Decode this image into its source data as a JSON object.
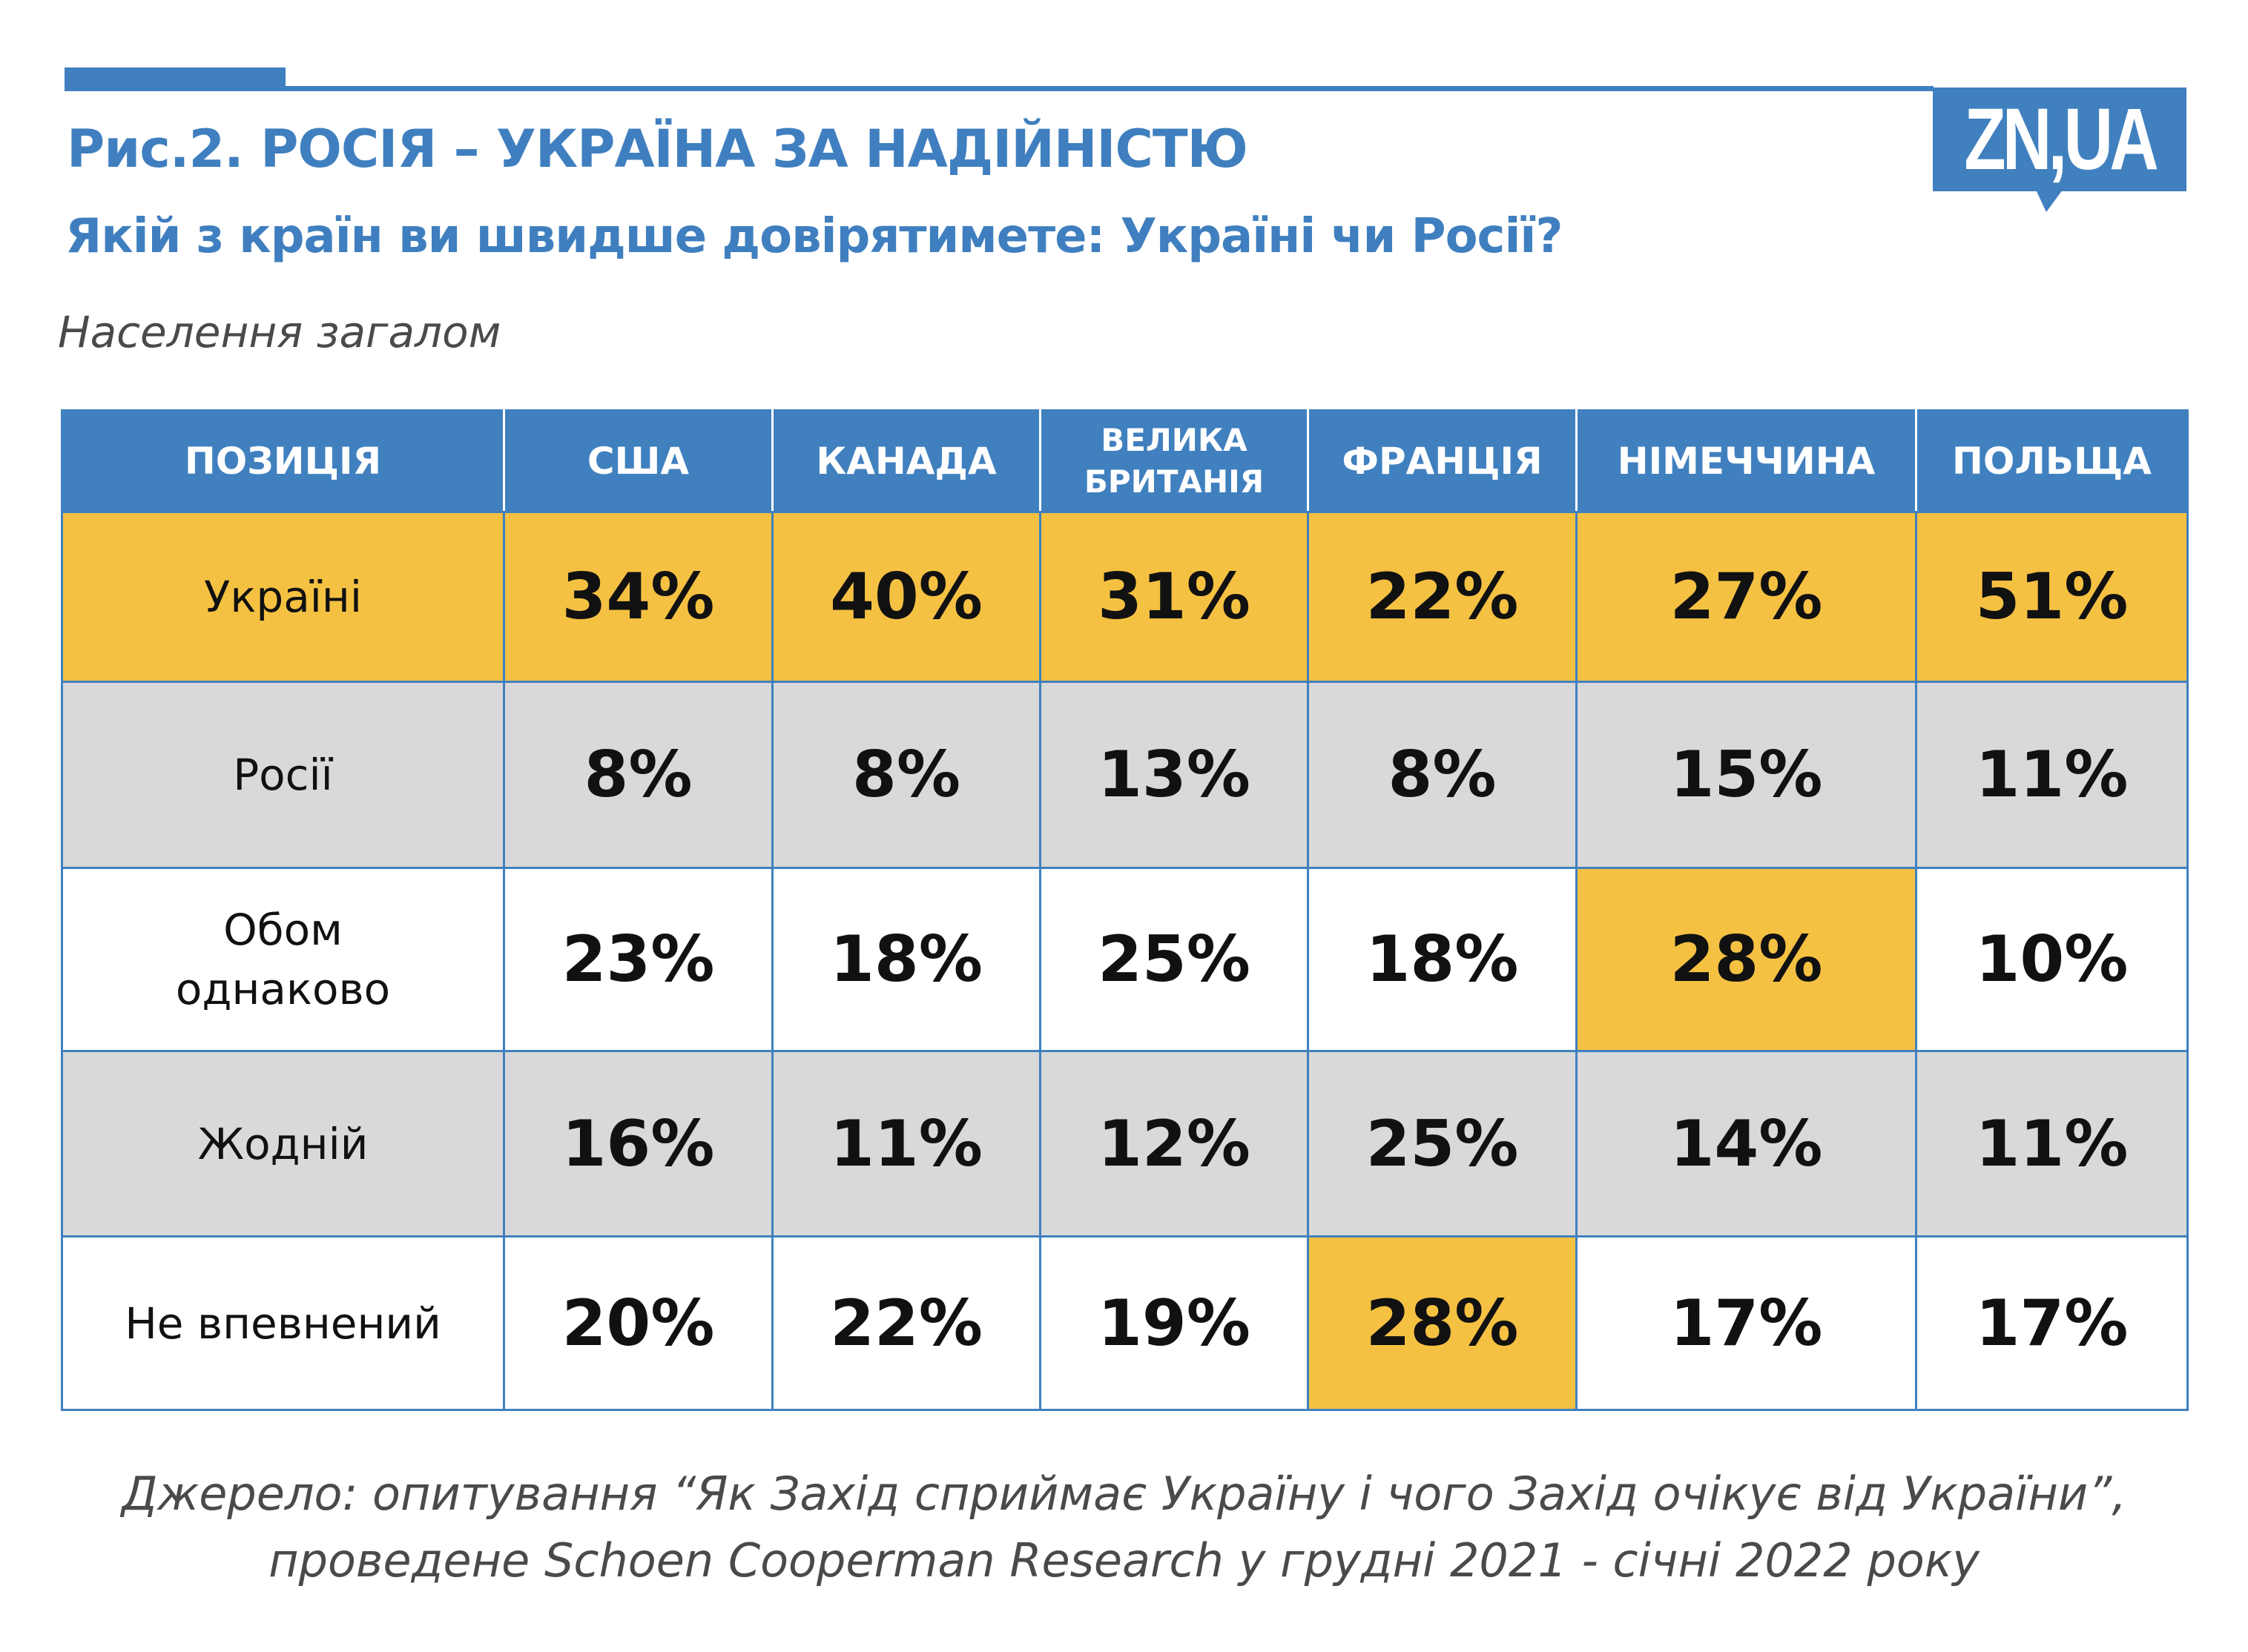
{
  "logo_text": "ZN,UA",
  "title": "Рис.2. РОСІЯ – УКРАЇНА ЗА НАДІЙНІСТЮ",
  "subtitle": "Якій з країн ви швидше довірятимете: Україні чи Росії?",
  "population": "Населення загалом",
  "colors": {
    "accent": "#4080bf",
    "highlight": "#f5c143",
    "gray_row": "#d9d9d9"
  },
  "table": {
    "headers": [
      "ПОЗИЦІЯ",
      "США",
      "КАНАДА",
      "ВЕЛИКА БРИТАНІЯ",
      "ФРАНЦІЯ",
      "НІМЕЧЧИНА",
      "ПОЛЬЩА"
    ],
    "rows": [
      {
        "label": "Україні",
        "values": [
          "34%",
          "40%",
          "31%",
          "22%",
          "27%",
          "51%"
        ],
        "shade": "gray",
        "highlight": [
          0,
          1,
          2,
          3,
          4,
          5,
          6
        ]
      },
      {
        "label": "Росії",
        "values": [
          "8%",
          "8%",
          "13%",
          "8%",
          "15%",
          "11%"
        ],
        "shade": "gray",
        "highlight": []
      },
      {
        "label": "Обом однаково",
        "values": [
          "23%",
          "18%",
          "25%",
          "18%",
          "28%",
          "10%"
        ],
        "shade": "white",
        "highlight": [
          5
        ]
      },
      {
        "label": "Жодній",
        "values": [
          "16%",
          "11%",
          "12%",
          "25%",
          "14%",
          "11%"
        ],
        "shade": "gray",
        "highlight": []
      },
      {
        "label": "Не впевнений",
        "values": [
          "20%",
          "22%",
          "19%",
          "28%",
          "17%",
          "17%"
        ],
        "shade": "white",
        "highlight": [
          4
        ]
      }
    ]
  },
  "footer": {
    "line1": "Джерело: опитування “Як Захід сприймає Україну і чого Захід очікує від України”,",
    "line2": "проведене Schoen Cooperman Research у грудні 2021 - січні 2022 року"
  }
}
